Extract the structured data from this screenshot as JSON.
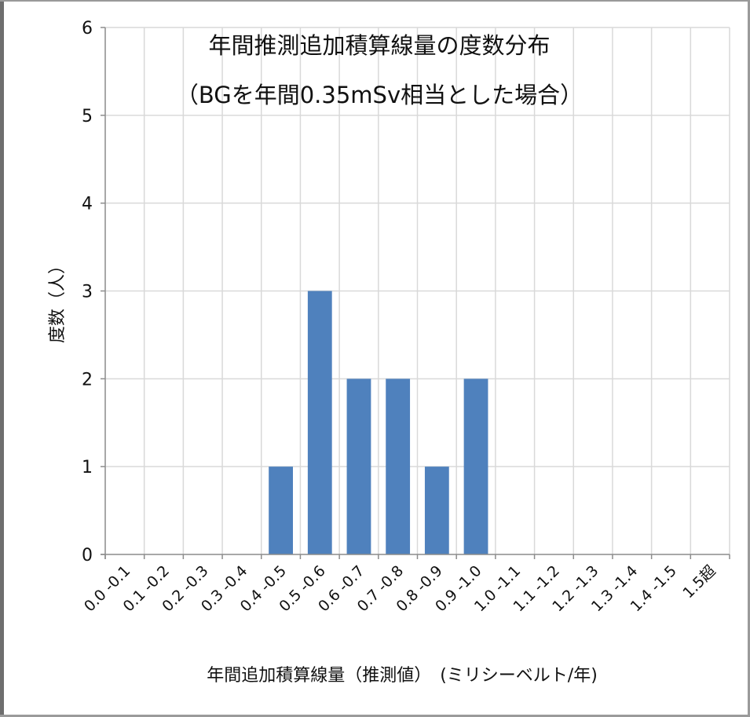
{
  "chart_data": {
    "type": "bar",
    "title": "年間推測追加積算線量の度数分布",
    "subtitle": "（BGを年間0.35mSv相当とした場合）",
    "xlabel": "年間追加積算線量（推測値）　(ミリシーベルト/年)",
    "ylabel": "度数（人）",
    "categories": [
      "0.0 -0.1",
      "0.1 -0.2",
      "0.2 -0.3",
      "0.3 -0.4",
      "0.4 -0.5",
      "0.5 -0.6",
      "0.6 -0.7",
      "0.7 -0.8",
      "0.8 -0.9",
      "0.9 -1.0",
      "1.0 -1.1",
      "1.1 -1.2",
      "1.2 -1.3",
      "1.3 -1.4",
      "1.4 -1.5",
      "1.5超"
    ],
    "values": [
      0,
      0,
      0,
      0,
      1,
      3,
      2,
      2,
      1,
      2,
      0,
      0,
      0,
      0,
      0,
      0
    ],
    "ylim": [
      0,
      6
    ],
    "yticks": [
      "0",
      "1",
      "2",
      "3",
      "4",
      "5",
      "6"
    ],
    "grid": true,
    "bar_color": "#4f81bd",
    "grid_color": "#d9d9d9"
  }
}
